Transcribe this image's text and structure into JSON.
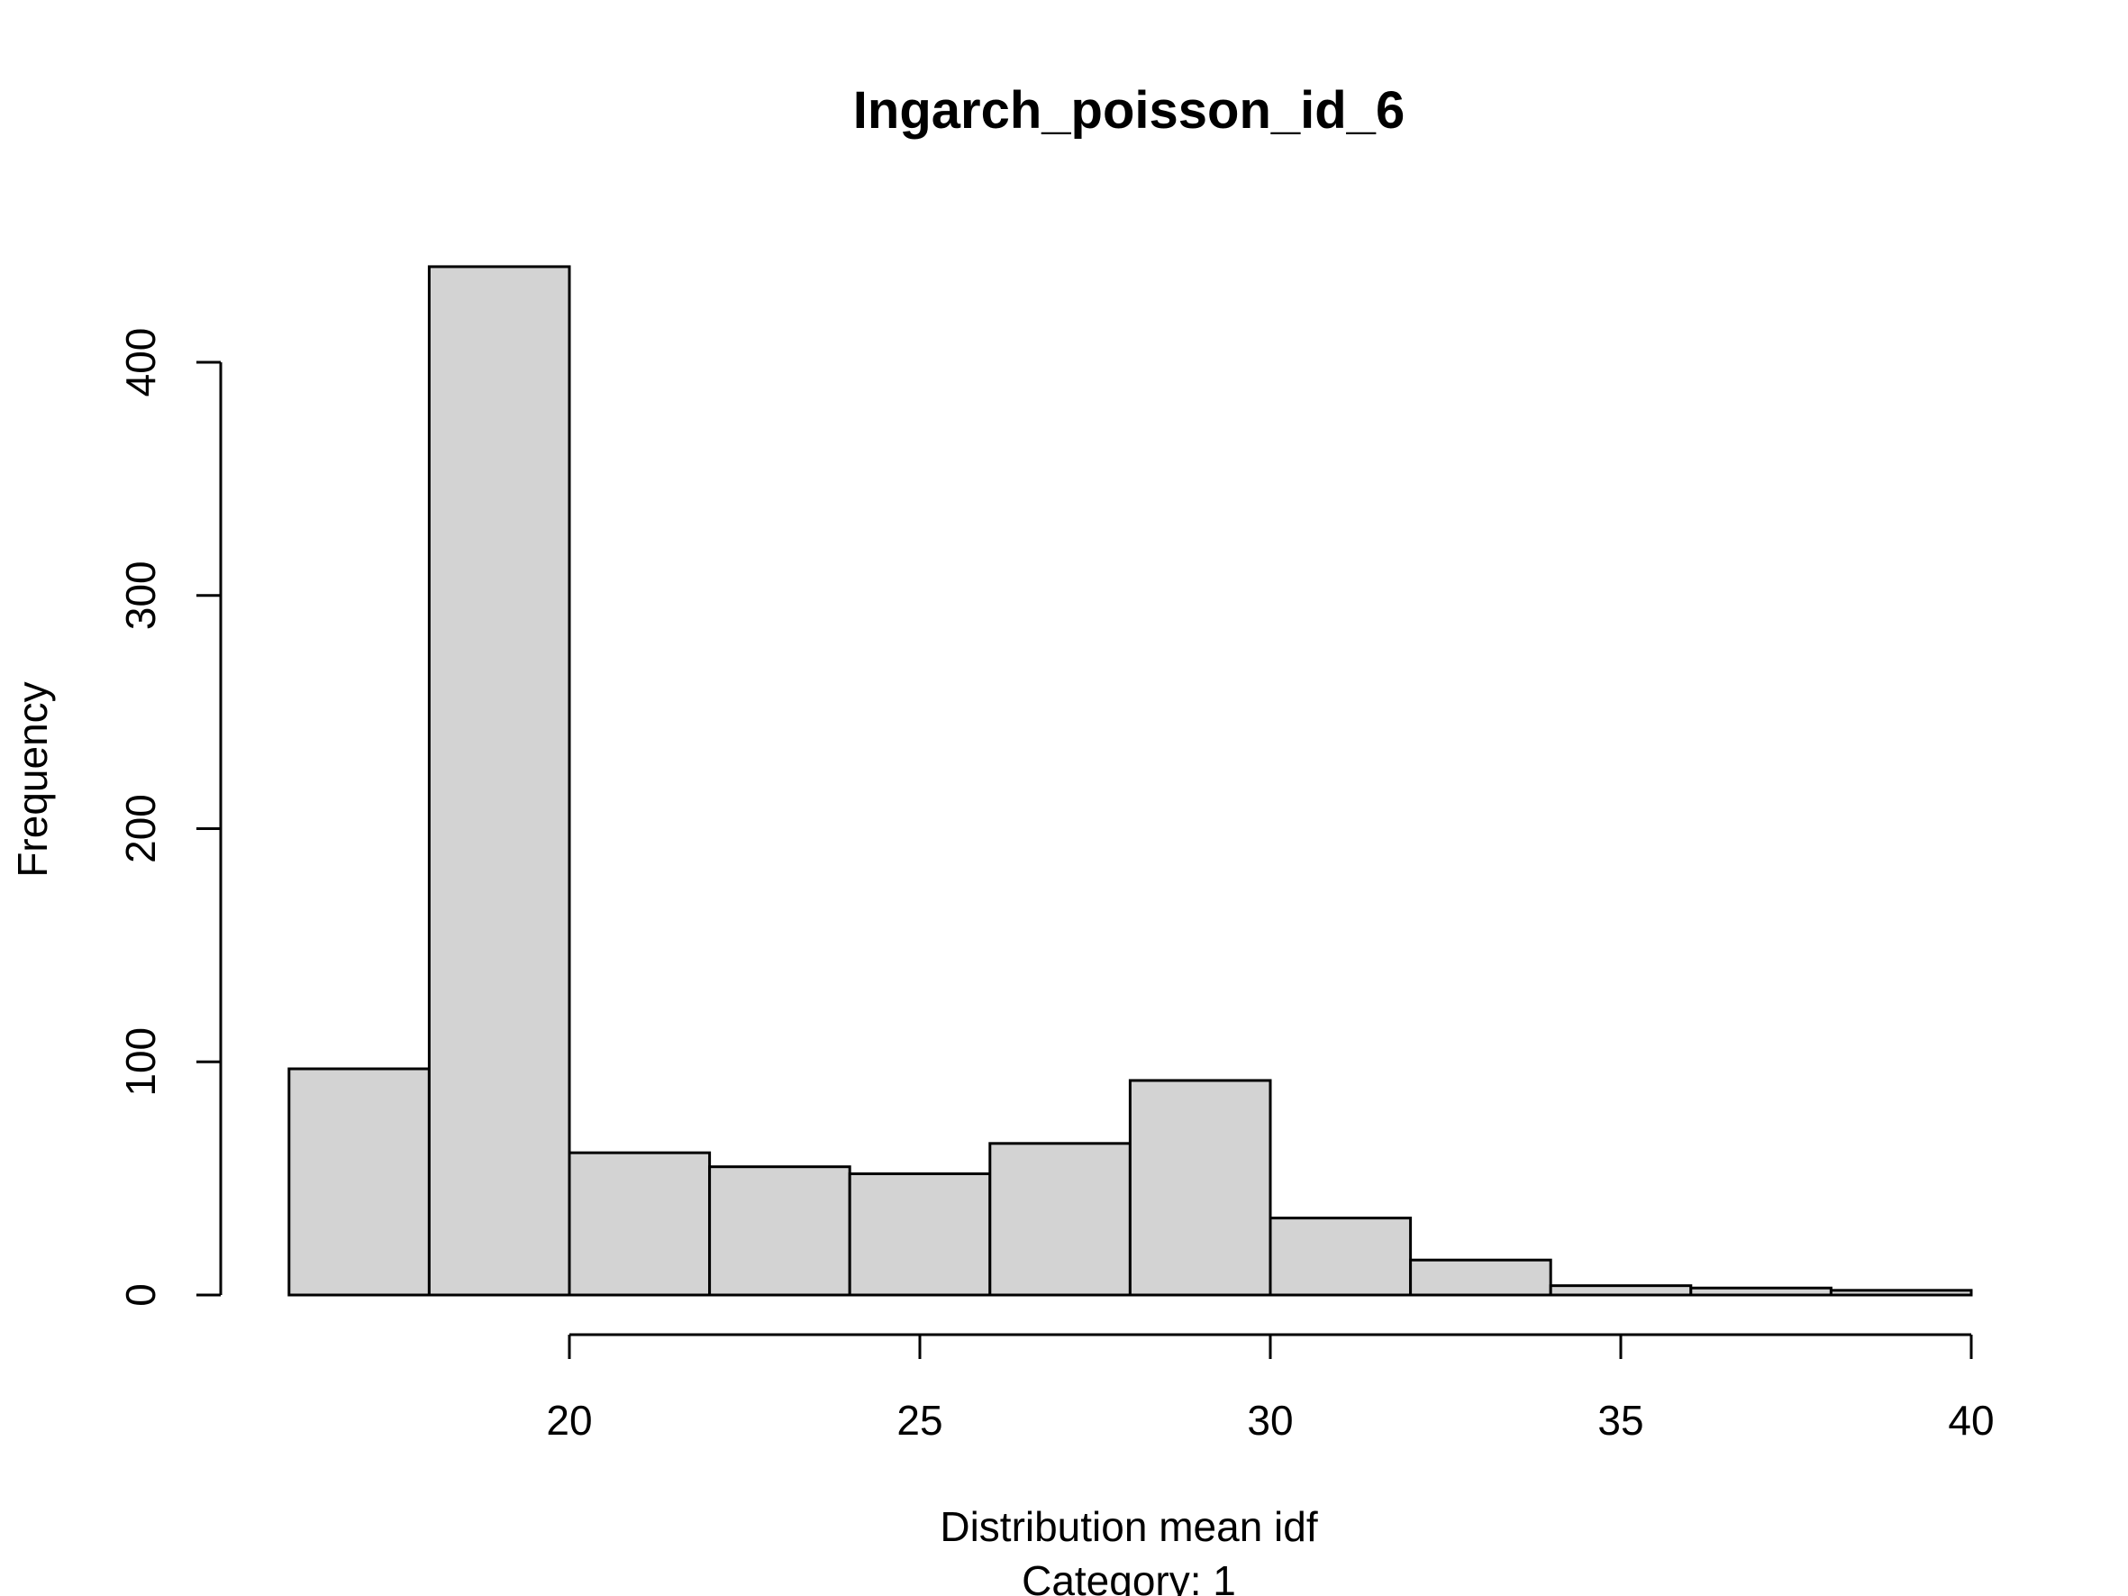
{
  "chart_data": {
    "type": "bar",
    "title": "Ingarch_poisson_id_6",
    "xlabel": "Distribution mean idf",
    "subtitle": "Category: 1",
    "ylabel": "Frequency",
    "x_ticks": [
      20,
      25,
      30,
      35,
      40
    ],
    "y_ticks": [
      0,
      100,
      200,
      300,
      400
    ],
    "xlim": [
      16,
      40
    ],
    "ylim": [
      0,
      441
    ],
    "grid": false,
    "bins": [
      {
        "x0": 16,
        "x1": 18,
        "count": 97
      },
      {
        "x0": 18,
        "x1": 20,
        "count": 441
      },
      {
        "x0": 20,
        "x1": 22,
        "count": 61
      },
      {
        "x0": 22,
        "x1": 24,
        "count": 55
      },
      {
        "x0": 24,
        "x1": 26,
        "count": 52
      },
      {
        "x0": 26,
        "x1": 28,
        "count": 65
      },
      {
        "x0": 28,
        "x1": 30,
        "count": 92
      },
      {
        "x0": 30,
        "x1": 32,
        "count": 33
      },
      {
        "x0": 32,
        "x1": 34,
        "count": 15
      },
      {
        "x0": 34,
        "x1": 36,
        "count": 4
      },
      {
        "x0": 36,
        "x1": 38,
        "count": 3
      },
      {
        "x0": 38,
        "x1": 40,
        "count": 2
      }
    ]
  }
}
